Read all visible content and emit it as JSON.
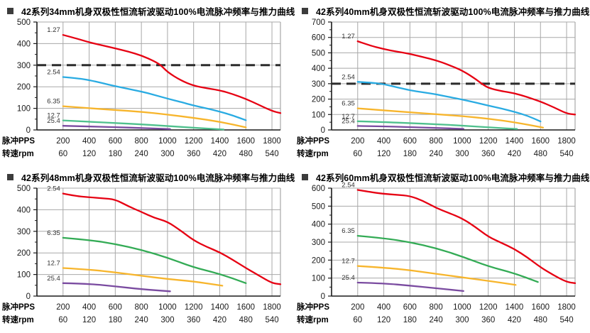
{
  "style": {
    "bullet_color": "#3c3c3c",
    "grid_color": "#a8a8a8",
    "axis_color": "#1a1a1a",
    "dashed_color": "#2b2b2b",
    "tick_label_color": "#1a1a1a",
    "series_label_color": "#333333"
  },
  "chart_data": [
    {
      "type": "line",
      "title": "42系列34mm机身双极性恒流斩波驱动100%电流脉冲频率与推力曲线",
      "ylim": [
        0,
        500
      ],
      "ytick_major": 100,
      "ytick_minor": 50,
      "xlim": [
        0,
        1865
      ],
      "grid": true,
      "legend_position": "inline-left",
      "dashed_line_y": 300,
      "x_axis_rows": [
        {
          "label": "脉冲PPS",
          "values": [
            200,
            400,
            600,
            800,
            1000,
            1200,
            1400,
            1600,
            1800
          ]
        },
        {
          "label": "转速rpm",
          "values": [
            60,
            120,
            180,
            240,
            300,
            360,
            420,
            480,
            540
          ]
        }
      ],
      "series": [
        {
          "name": "1.27",
          "color": "#e60012",
          "points": [
            [
              200,
              440
            ],
            [
              300,
              424
            ],
            [
              400,
              406
            ],
            [
              500,
              392
            ],
            [
              600,
              378
            ],
            [
              700,
              363
            ],
            [
              800,
              345
            ],
            [
              900,
              318
            ],
            [
              950,
              300
            ],
            [
              1000,
              268
            ],
            [
              1100,
              230
            ],
            [
              1200,
              205
            ],
            [
              1300,
              193
            ],
            [
              1400,
              184
            ],
            [
              1500,
              166
            ],
            [
              1600,
              144
            ],
            [
              1700,
              116
            ],
            [
              1800,
              88
            ],
            [
              1865,
              78
            ]
          ]
        },
        {
          "name": "2.54",
          "color": "#29abe2",
          "points": [
            [
              200,
              245
            ],
            [
              300,
              240
            ],
            [
              400,
              231
            ],
            [
              500,
              217
            ],
            [
              600,
              203
            ],
            [
              700,
              190
            ],
            [
              800,
              178
            ],
            [
              900,
              162
            ],
            [
              1000,
              145
            ],
            [
              1100,
              130
            ],
            [
              1200,
              113
            ],
            [
              1300,
              100
            ],
            [
              1400,
              85
            ],
            [
              1500,
              67
            ],
            [
              1600,
              45
            ]
          ]
        },
        {
          "name": "6.35",
          "color": "#f7b52c",
          "points": [
            [
              200,
              110
            ],
            [
              400,
              101
            ],
            [
              600,
              92
            ],
            [
              800,
              84
            ],
            [
              1000,
              71
            ],
            [
              1200,
              56
            ],
            [
              1400,
              38
            ],
            [
              1600,
              12
            ]
          ]
        },
        {
          "name": "12.7",
          "color": "#4fc08d",
          "points": [
            [
              200,
              44
            ],
            [
              400,
              38
            ],
            [
              600,
              32
            ],
            [
              800,
              26
            ],
            [
              1000,
              18
            ],
            [
              1200,
              10
            ],
            [
              1430,
              2
            ]
          ]
        },
        {
          "name": "25.4",
          "color": "#7a4ba0",
          "points": [
            [
              200,
              19
            ],
            [
              400,
              16
            ],
            [
              600,
              13
            ],
            [
              800,
              9
            ],
            [
              1020,
              4
            ]
          ]
        }
      ]
    },
    {
      "type": "line",
      "title": "42系列40mm机身双极性恒流斩波驱动100%电流脉冲频率与推力曲线",
      "ylim": [
        0,
        700
      ],
      "ytick_major": 100,
      "ytick_minor": 50,
      "xlim": [
        0,
        1865
      ],
      "grid": true,
      "legend_position": "inline-left",
      "dashed_line_y": 300,
      "x_axis_rows": [
        {
          "label": "脉冲PPS",
          "values": [
            200,
            400,
            600,
            800,
            1000,
            1200,
            1400,
            1600,
            1800
          ]
        },
        {
          "label": "转速rpm",
          "values": [
            60,
            120,
            180,
            240,
            300,
            360,
            420,
            480,
            540
          ]
        }
      ],
      "series": [
        {
          "name": "1.27",
          "color": "#e60012",
          "points": [
            [
              200,
              575
            ],
            [
              300,
              546
            ],
            [
              400,
              524
            ],
            [
              500,
              508
            ],
            [
              600,
              493
            ],
            [
              700,
              473
            ],
            [
              800,
              452
            ],
            [
              900,
              421
            ],
            [
              1000,
              386
            ],
            [
              1100,
              332
            ],
            [
              1150,
              300
            ],
            [
              1200,
              272
            ],
            [
              1300,
              252
            ],
            [
              1400,
              238
            ],
            [
              1500,
              213
            ],
            [
              1600,
              184
            ],
            [
              1700,
              148
            ],
            [
              1800,
              106
            ],
            [
              1865,
              100
            ]
          ]
        },
        {
          "name": "2.54",
          "color": "#29abe2",
          "points": [
            [
              200,
              312
            ],
            [
              300,
              307
            ],
            [
              400,
              297
            ],
            [
              500,
              277
            ],
            [
              600,
              257
            ],
            [
              700,
              244
            ],
            [
              800,
              231
            ],
            [
              900,
              214
            ],
            [
              1000,
              197
            ],
            [
              1100,
              178
            ],
            [
              1200,
              158
            ],
            [
              1300,
              139
            ],
            [
              1400,
              118
            ],
            [
              1500,
              92
            ],
            [
              1600,
              55
            ]
          ]
        },
        {
          "name": "6.35",
          "color": "#f7b52c",
          "points": [
            [
              200,
              140
            ],
            [
              400,
              127
            ],
            [
              600,
              114
            ],
            [
              800,
              102
            ],
            [
              1000,
              90
            ],
            [
              1200,
              73
            ],
            [
              1400,
              50
            ],
            [
              1620,
              15
            ]
          ]
        },
        {
          "name": "12.7",
          "color": "#4fc08d",
          "points": [
            [
              200,
              56
            ],
            [
              400,
              51
            ],
            [
              600,
              44
            ],
            [
              800,
              37
            ],
            [
              1000,
              28
            ],
            [
              1200,
              17
            ],
            [
              1420,
              6
            ]
          ]
        },
        {
          "name": "25.4",
          "color": "#7a4ba0",
          "points": [
            [
              200,
              26
            ],
            [
              400,
              23
            ],
            [
              600,
              18
            ],
            [
              800,
              13
            ],
            [
              1010,
              7
            ]
          ]
        }
      ]
    },
    {
      "type": "line",
      "title": "42系列48mm机身双极性恒流斩波驱动100%电流脉冲频率与推力曲线",
      "ylim": [
        0,
        500
      ],
      "ytick_major": 100,
      "ytick_minor": 50,
      "xlim": [
        0,
        1865
      ],
      "grid": true,
      "legend_position": "inline-left",
      "dashed_line_y": null,
      "x_axis_rows": [
        {
          "label": "脉冲PPS",
          "values": [
            200,
            400,
            600,
            800,
            1000,
            1200,
            1400,
            1600,
            1800
          ]
        },
        {
          "label": "转速rpm",
          "values": [
            60,
            120,
            180,
            240,
            300,
            360,
            420,
            480,
            540
          ]
        }
      ],
      "series": [
        {
          "name": "2.54",
          "color": "#e60012",
          "points": [
            [
              200,
              475
            ],
            [
              300,
              463
            ],
            [
              400,
              458
            ],
            [
              500,
              453
            ],
            [
              600,
              448
            ],
            [
              700,
              416
            ],
            [
              800,
              390
            ],
            [
              900,
              362
            ],
            [
              1000,
              345
            ],
            [
              1100,
              304
            ],
            [
              1200,
              258
            ],
            [
              1300,
              228
            ],
            [
              1400,
              203
            ],
            [
              1500,
              168
            ],
            [
              1600,
              130
            ],
            [
              1700,
              95
            ],
            [
              1800,
              60
            ],
            [
              1865,
              55
            ]
          ]
        },
        {
          "name": "6.35",
          "color": "#33ab55",
          "points": [
            [
              200,
              270
            ],
            [
              400,
              260
            ],
            [
              600,
              241
            ],
            [
              800,
              214
            ],
            [
              1000,
              178
            ],
            [
              1200,
              133
            ],
            [
              1400,
              103
            ],
            [
              1600,
              60
            ]
          ]
        },
        {
          "name": "12.7",
          "color": "#f7b52c",
          "points": [
            [
              200,
              130
            ],
            [
              400,
              123
            ],
            [
              600,
              110
            ],
            [
              800,
              94
            ],
            [
              1000,
              79
            ],
            [
              1200,
              68
            ],
            [
              1420,
              48
            ]
          ]
        },
        {
          "name": "25.4",
          "color": "#7a4ba0",
          "points": [
            [
              200,
              60
            ],
            [
              400,
              57
            ],
            [
              600,
              45
            ],
            [
              800,
              32
            ],
            [
              1020,
              22
            ]
          ]
        }
      ]
    },
    {
      "type": "line",
      "title": "42系列60mm机身双极性恒流斩波驱动100%电流脉冲频率与推力曲线",
      "ylim": [
        0,
        600
      ],
      "ytick_major": 100,
      "ytick_minor": 50,
      "xlim": [
        0,
        1865
      ],
      "grid": true,
      "legend_position": "inline-left",
      "dashed_line_y": null,
      "x_axis_rows": [
        {
          "label": "脉冲PPS",
          "values": [
            200,
            400,
            600,
            800,
            1000,
            1200,
            1400,
            1600,
            1800
          ]
        },
        {
          "label": "转速rpm",
          "values": [
            60,
            120,
            180,
            240,
            300,
            360,
            420,
            480,
            540
          ]
        }
      ],
      "series": [
        {
          "name": "2.54",
          "color": "#e60012",
          "points": [
            [
              200,
              590
            ],
            [
              300,
              578
            ],
            [
              400,
              568
            ],
            [
              500,
              563
            ],
            [
              600,
              557
            ],
            [
              700,
              530
            ],
            [
              800,
              490
            ],
            [
              900,
              462
            ],
            [
              1000,
              432
            ],
            [
              1100,
              385
            ],
            [
              1200,
              330
            ],
            [
              1300,
              296
            ],
            [
              1400,
              262
            ],
            [
              1500,
              215
            ],
            [
              1600,
              160
            ],
            [
              1700,
              116
            ],
            [
              1800,
              78
            ],
            [
              1865,
              72
            ]
          ]
        },
        {
          "name": "6.35",
          "color": "#33ab55",
          "points": [
            [
              200,
              335
            ],
            [
              400,
              322
            ],
            [
              600,
              300
            ],
            [
              800,
              267
            ],
            [
              1000,
              220
            ],
            [
              1200,
              165
            ],
            [
              1400,
              127
            ],
            [
              1580,
              78
            ]
          ]
        },
        {
          "name": "12.7",
          "color": "#f7b52c",
          "points": [
            [
              200,
              167
            ],
            [
              400,
              158
            ],
            [
              600,
              144
            ],
            [
              800,
              124
            ],
            [
              1000,
              104
            ],
            [
              1200,
              85
            ],
            [
              1410,
              62
            ]
          ]
        },
        {
          "name": "25.4",
          "color": "#7a4ba0",
          "points": [
            [
              200,
              75
            ],
            [
              400,
              71
            ],
            [
              600,
              58
            ],
            [
              800,
              44
            ],
            [
              1010,
              28
            ]
          ]
        }
      ]
    }
  ]
}
